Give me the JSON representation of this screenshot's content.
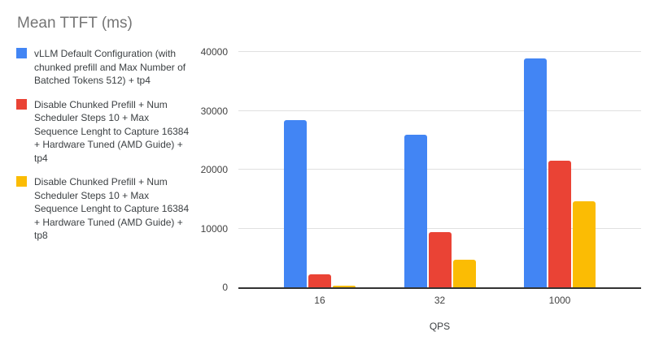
{
  "chart_data": {
    "type": "bar",
    "title": "Mean TTFT (ms)",
    "xlabel": "QPS",
    "ylabel": "",
    "categories": [
      "16",
      "32",
      "1000"
    ],
    "series": [
      {
        "name": "vLLM Default Configuration (with chunked prefill and Max Number of Batched Tokens 512) + tp4",
        "color": "#4285F4",
        "values": [
          28400,
          25900,
          38900
        ]
      },
      {
        "name": "Disable Chunked Prefill + Num Scheduler Steps 10 + Max Sequence Lenght to Capture 16384 + Hardware Tuned (AMD Guide) + tp4",
        "color": "#EA4335",
        "values": [
          2250,
          9400,
          21500
        ]
      },
      {
        "name": "Disable Chunked Prefill + Num Scheduler Steps 10 + Max Sequence Lenght to Capture 16384 + Hardware Tuned (AMD Guide) + tp8",
        "color": "#FBBC04",
        "values": [
          250,
          4700,
          14600
        ]
      }
    ],
    "ylim": [
      0,
      40000
    ],
    "yticks": [
      0,
      10000,
      20000,
      30000,
      40000
    ],
    "grid": "horizontal",
    "legend_position": "left",
    "colors": {
      "title_text": "#757575",
      "legend_text": "#3c4043",
      "tick_text": "#424242",
      "axis_line": "#333333",
      "gridline": "#e0e0e0"
    }
  }
}
